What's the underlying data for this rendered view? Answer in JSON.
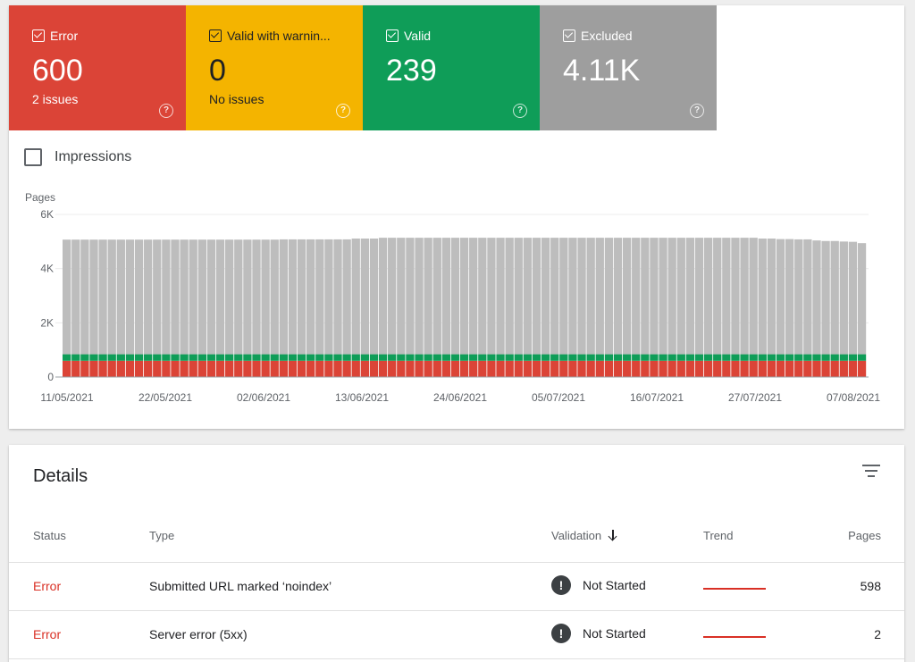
{
  "tiles": [
    {
      "label": "Error",
      "value": "600",
      "sub": "2 issues",
      "color": "#db4437"
    },
    {
      "label": "Valid with warnin...",
      "value": "0",
      "sub": "No issues",
      "color": "#f4b400"
    },
    {
      "label": "Valid",
      "value": "239",
      "sub": "",
      "color": "#0f9d58"
    },
    {
      "label": "Excluded",
      "value": "4.11K",
      "sub": "",
      "color": "#9e9e9e"
    }
  ],
  "impressions_label": "Impressions",
  "chart_data": {
    "type": "bar",
    "stacked": true,
    "ylabel": "Pages",
    "ylim": [
      0,
      6000
    ],
    "yticks": [
      "0",
      "2K",
      "4K",
      "6K"
    ],
    "yticks_values": [
      0,
      2000,
      4000,
      6000
    ],
    "xticks": [
      "11/05/2021",
      "22/05/2021",
      "02/06/2021",
      "13/06/2021",
      "24/06/2021",
      "05/07/2021",
      "16/07/2021",
      "27/07/2021",
      "07/08/2021"
    ],
    "x_start": "11/05/2021",
    "x_end": "07/08/2021",
    "series": [
      {
        "color": "#db4437",
        "values": [
          600,
          600,
          600,
          600,
          600,
          600,
          600,
          600,
          600,
          600,
          600,
          600,
          600,
          600,
          600,
          600,
          600,
          600,
          600,
          600,
          600,
          600,
          600,
          600,
          600,
          600,
          600,
          600,
          600,
          600,
          600,
          600,
          600,
          600,
          600,
          600,
          600,
          600,
          600,
          600,
          600,
          600,
          600,
          600,
          600,
          600,
          600,
          600,
          600,
          600,
          600,
          600,
          600,
          600,
          600,
          600,
          600,
          600,
          600,
          600,
          600,
          600,
          600,
          600,
          600,
          600,
          600,
          600,
          600,
          600,
          600,
          600,
          600,
          600,
          600,
          600,
          600,
          600,
          600,
          600,
          600,
          600,
          600,
          600,
          600,
          600,
          600,
          600,
          600
        ]
      },
      {
        "color": "#0f9d58",
        "values": [
          239,
          239,
          239,
          239,
          239,
          239,
          239,
          239,
          239,
          239,
          239,
          239,
          239,
          239,
          239,
          239,
          239,
          239,
          239,
          239,
          239,
          239,
          239,
          239,
          239,
          239,
          239,
          239,
          239,
          239,
          239,
          239,
          239,
          239,
          239,
          239,
          239,
          239,
          239,
          239,
          239,
          239,
          239,
          239,
          239,
          239,
          239,
          239,
          239,
          239,
          239,
          239,
          239,
          239,
          239,
          239,
          239,
          239,
          239,
          239,
          239,
          239,
          239,
          239,
          239,
          239,
          239,
          239,
          239,
          239,
          239,
          239,
          239,
          239,
          239,
          239,
          239,
          239,
          239,
          239,
          239,
          239,
          239,
          239,
          239,
          239,
          239,
          239,
          239
        ]
      },
      {
        "color": "#bdbdbd",
        "values": [
          4230,
          4230,
          4230,
          4230,
          4230,
          4230,
          4230,
          4230,
          4230,
          4230,
          4230,
          4230,
          4230,
          4230,
          4230,
          4230,
          4230,
          4230,
          4230,
          4230,
          4230,
          4230,
          4230,
          4230,
          4240,
          4240,
          4240,
          4240,
          4240,
          4240,
          4240,
          4240,
          4270,
          4270,
          4270,
          4300,
          4300,
          4300,
          4300,
          4300,
          4300,
          4300,
          4300,
          4300,
          4300,
          4300,
          4300,
          4300,
          4300,
          4300,
          4300,
          4300,
          4300,
          4300,
          4300,
          4300,
          4300,
          4300,
          4300,
          4300,
          4300,
          4300,
          4300,
          4300,
          4300,
          4300,
          4300,
          4300,
          4300,
          4300,
          4300,
          4300,
          4300,
          4300,
          4300,
          4300,
          4300,
          4270,
          4270,
          4250,
          4250,
          4240,
          4240,
          4200,
          4180,
          4180,
          4160,
          4150,
          4100
        ]
      }
    ]
  },
  "details": {
    "title": "Details",
    "headers": {
      "status": "Status",
      "type": "Type",
      "validation": "Validation",
      "trend": "Trend",
      "pages": "Pages"
    },
    "rows": [
      {
        "status": "Error",
        "type": "Submitted URL marked ‘noindex’",
        "validation": "Not Started",
        "pages": "598"
      },
      {
        "status": "Error",
        "type": "Server error (5xx)",
        "validation": "Not Started",
        "pages": "2"
      }
    ]
  }
}
